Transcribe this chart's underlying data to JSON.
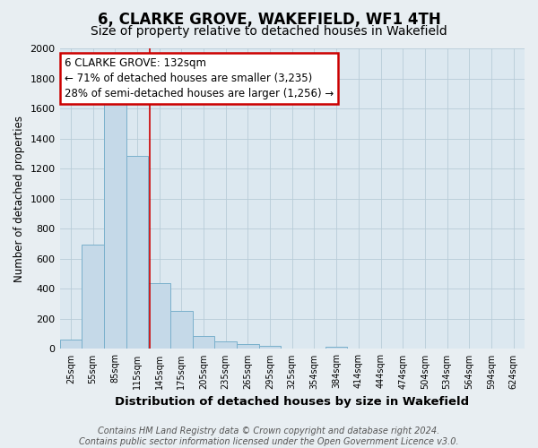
{
  "title": "6, CLARKE GROVE, WAKEFIELD, WF1 4TH",
  "subtitle": "Size of property relative to detached houses in Wakefield",
  "xlabel": "Distribution of detached houses by size in Wakefield",
  "ylabel": "Number of detached properties",
  "categories": [
    "25sqm",
    "55sqm",
    "85sqm",
    "115sqm",
    "145sqm",
    "175sqm",
    "205sqm",
    "235sqm",
    "265sqm",
    "295sqm",
    "325sqm",
    "354sqm",
    "384sqm",
    "414sqm",
    "444sqm",
    "474sqm",
    "504sqm",
    "534sqm",
    "564sqm",
    "594sqm",
    "624sqm"
  ],
  "values": [
    65,
    695,
    1630,
    1285,
    435,
    252,
    88,
    50,
    32,
    22,
    0,
    0,
    12,
    0,
    0,
    0,
    0,
    0,
    0,
    0,
    0
  ],
  "bar_color": "#c5d9e8",
  "bar_edge_color": "#7ab0cc",
  "annotation_box_text": "6 CLARKE GROVE: 132sqm\n← 71% of detached houses are smaller (3,235)\n28% of semi-detached houses are larger (1,256) →",
  "annotation_box_color": "#ffffff",
  "annotation_box_edge": "#cc0000",
  "red_line_x": 3.57,
  "ylim": [
    0,
    2000
  ],
  "yticks": [
    0,
    200,
    400,
    600,
    800,
    1000,
    1200,
    1400,
    1600,
    1800,
    2000
  ],
  "footer_text": "Contains HM Land Registry data © Crown copyright and database right 2024.\nContains public sector information licensed under the Open Government Licence v3.0.",
  "title_fontsize": 12,
  "subtitle_fontsize": 10,
  "xlabel_fontsize": 9.5,
  "ylabel_fontsize": 8.5,
  "footer_fontsize": 7,
  "bg_color": "#e8eef2",
  "plot_bg_color": "#dce8f0"
}
